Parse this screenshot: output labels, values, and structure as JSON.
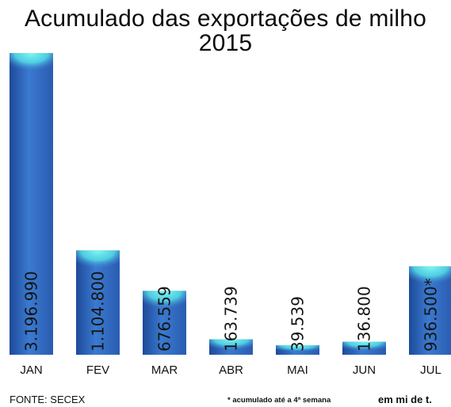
{
  "chart_data": {
    "type": "bar",
    "title": "Acumulado das exportações de milho",
    "subtitle": "2015",
    "categories": [
      "JAN",
      "FEV",
      "MAR",
      "ABR",
      "MAI",
      "JUN",
      "JUL"
    ],
    "values": [
      3196990,
      1104800,
      676559,
      163739,
      39539,
      136800,
      936500
    ],
    "value_labels": [
      "3.196.990",
      "1.104.800",
      "676.559",
      "163.739",
      "39.539",
      "136.800",
      "936.500*"
    ],
    "ylim": [
      0,
      3196990
    ],
    "grid": false,
    "legend": "none"
  },
  "footer": {
    "source": "FONTE: SECEX",
    "note": "* acumulado até a 4ª semana",
    "unit": "em mi de t."
  },
  "colors": {
    "bar_top": "#5fe8e4",
    "bar_mid": "#3f7fd2",
    "bar_bottom": "#214fa0"
  }
}
